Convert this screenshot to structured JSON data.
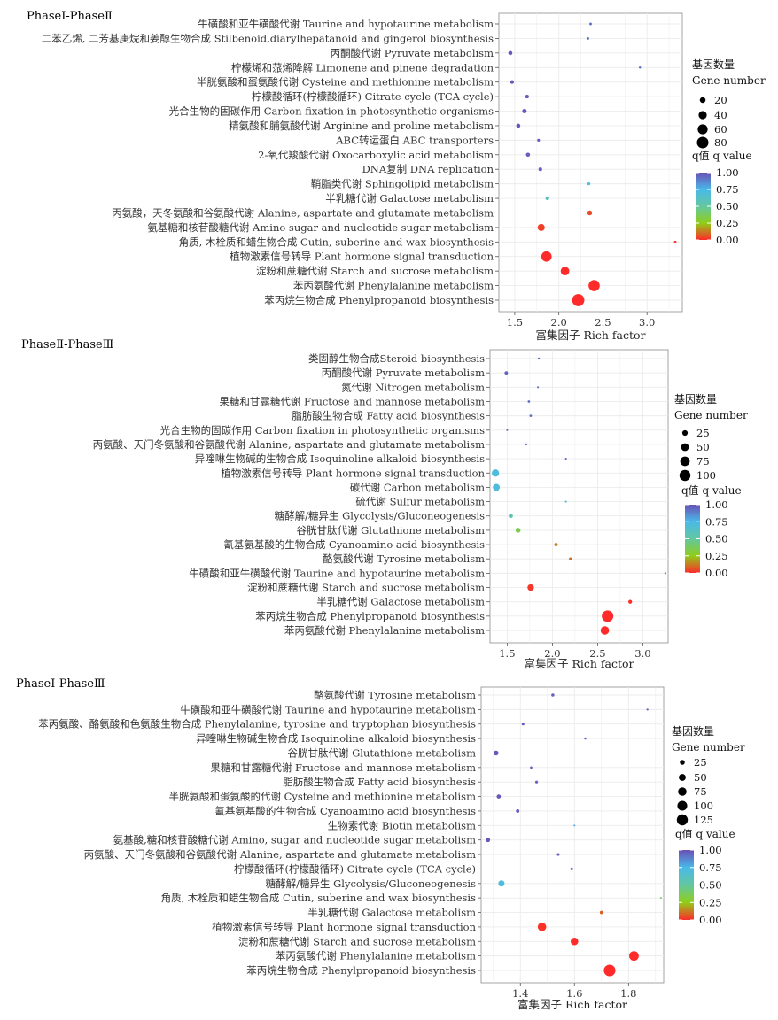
{
  "chart_data": [
    {
      "type": "scatter",
      "title": "PhaseⅠ-PhaseⅡ",
      "xlabel": "富集因子 Rich factor",
      "xlim": [
        1.32,
        3.4
      ],
      "xticks": [
        1.5,
        2.0,
        2.5,
        3.0
      ],
      "xtick_labels": [
        "1.5",
        "2.0",
        "2.5",
        "3.0"
      ],
      "grid": true,
      "size_legend": {
        "title1": "基因数量",
        "title2": "Gene number",
        "values": [
          20,
          40,
          60,
          80
        ]
      },
      "color_legend": {
        "title": "q值 q value",
        "ticks": [
          1.0,
          0.75,
          0.5,
          0.25,
          0.0
        ],
        "tick_labels": [
          "1.00",
          "0.75",
          "0.50",
          "0.25",
          "0.00"
        ]
      },
      "points": [
        {
          "pathway": "牛磺酸和亚牛磺酸代谢 Taurine and hypotaurine metabolism",
          "rich_factor": 2.36,
          "gene_number": 4,
          "q_value": 0.92
        },
        {
          "pathway": "二苯乙烯, 二芳基庚烷和姜醇生物合成 Stilbenoid,diarylhepatanoid and gingerol biosynthesis",
          "rich_factor": 2.33,
          "gene_number": 4,
          "q_value": 0.92
        },
        {
          "pathway": "丙酮酸代谢 Pyruvate metabolism",
          "rich_factor": 1.45,
          "gene_number": 10,
          "q_value": 0.98
        },
        {
          "pathway": "柠檬烯和蒎烯降解 Limonene and pinene degradation",
          "rich_factor": 2.92,
          "gene_number": 3,
          "q_value": 0.92
        },
        {
          "pathway": "半胱氨酸和蛋氨酸代谢 Cysteine and methionine metabolism",
          "rich_factor": 1.47,
          "gene_number": 8,
          "q_value": 0.98
        },
        {
          "pathway": "柠檬酸循环(柠檬酸循环) Citrate cycle (TCA cycle)",
          "rich_factor": 1.64,
          "gene_number": 8,
          "q_value": 0.97
        },
        {
          "pathway": "光合生物的固碳作用 Carbon fixation in photosynthetic organisms",
          "rich_factor": 1.61,
          "gene_number": 12,
          "q_value": 0.98
        },
        {
          "pathway": "精氨酸和脯氨酸代谢 Arginine and proline metabolism",
          "rich_factor": 1.54,
          "gene_number": 10,
          "q_value": 0.98
        },
        {
          "pathway": "ABC转运蛋白 ABC transporters",
          "rich_factor": 1.77,
          "gene_number": 5,
          "q_value": 0.96
        },
        {
          "pathway": "2-氧代羧酸代谢 Oxocarboxylic acid metabolism",
          "rich_factor": 1.65,
          "gene_number": 10,
          "q_value": 0.97
        },
        {
          "pathway": "DNA复制 DNA replication",
          "rich_factor": 1.79,
          "gene_number": 8,
          "q_value": 0.96
        },
        {
          "pathway": "鞘脂类代谢 Sphingolipid metabolism",
          "rich_factor": 2.34,
          "gene_number": 5,
          "q_value": 0.72
        },
        {
          "pathway": "半乳糖代谢 Galactose metabolism",
          "rich_factor": 1.87,
          "gene_number": 8,
          "q_value": 0.62
        },
        {
          "pathway": "丙氨酸，天冬氨酸和谷氨酸代谢 Alanine, aspartate and glutamate metabolism",
          "rich_factor": 2.35,
          "gene_number": 14,
          "q_value": 0.05
        },
        {
          "pathway": "氨基糖和核苷酸糖代谢 Amino sugar and nucleotide sugar metabolism",
          "rich_factor": 1.8,
          "gene_number": 30,
          "q_value": 0.03
        },
        {
          "pathway": "角质, 木栓质和蜡生物合成 Cutin, suberine and wax biosynthesis",
          "rich_factor": 3.32,
          "gene_number": 4,
          "q_value": 0.02
        },
        {
          "pathway": "植物激素信号转导 Plant hormone signal transduction",
          "rich_factor": 1.86,
          "gene_number": 65,
          "q_value": 0.0
        },
        {
          "pathway": "淀粉和蔗糖代谢 Starch and sucrose metabolism",
          "rich_factor": 2.07,
          "gene_number": 45,
          "q_value": 0.0
        },
        {
          "pathway": "苯丙氨酸代谢 Phenylalanine metabolism",
          "rich_factor": 2.4,
          "gene_number": 75,
          "q_value": 0.0
        },
        {
          "pathway": "苯丙烷生物合成 Phenylpropanoid biosynthesis",
          "rich_factor": 2.22,
          "gene_number": 90,
          "q_value": 0.0
        }
      ]
    },
    {
      "type": "scatter",
      "title": "PhaseⅡ-PhaseⅢ",
      "xlabel": "富集因子 Rich factor",
      "xlim": [
        1.31,
        3.28
      ],
      "xticks": [
        1.5,
        2.0,
        2.5,
        3.0
      ],
      "xtick_labels": [
        "1.5",
        "2.0",
        "2.5",
        "3.0"
      ],
      "grid": true,
      "size_legend": {
        "title1": "基因数量",
        "title2": "Gene number",
        "values": [
          25,
          50,
          75,
          100
        ]
      },
      "color_legend": {
        "title": "q值 q value",
        "ticks": [
          1.0,
          0.75,
          0.5,
          0.25,
          0.0
        ],
        "tick_labels": [
          "1.00",
          "0.75",
          "0.50",
          "0.25",
          "0.00"
        ]
      },
      "points": [
        {
          "pathway": "类固醇生物合成Steroid biosynthesis",
          "rich_factor": 1.85,
          "gene_number": 4,
          "q_value": 0.92
        },
        {
          "pathway": "丙酮酸代谢 Pyruvate metabolism",
          "rich_factor": 1.49,
          "gene_number": 10,
          "q_value": 0.95
        },
        {
          "pathway": "氮代谢 Nitrogen metabolism",
          "rich_factor": 1.84,
          "gene_number": 3,
          "q_value": 0.93
        },
        {
          "pathway": "果糖和甘露糖代谢 Fructose and mannose metabolism",
          "rich_factor": 1.74,
          "gene_number": 5,
          "q_value": 0.93
        },
        {
          "pathway": "脂肪酸生物合成 Fatty acid biosynthesis",
          "rich_factor": 1.76,
          "gene_number": 5,
          "q_value": 0.93
        },
        {
          "pathway": "光合生物的固碳作用 Carbon fixation in photosynthetic organisms",
          "rich_factor": 1.5,
          "gene_number": 3,
          "q_value": 0.93
        },
        {
          "pathway": "丙氨酸、天门冬氨酸和谷氨酸代谢 Alanine, aspartate and glutamate metabolism",
          "rich_factor": 1.71,
          "gene_number": 4,
          "q_value": 0.92
        },
        {
          "pathway": "异喹啉生物碱的生物合成 Isoquinoline alkaloid biosynthesis",
          "rich_factor": 2.15,
          "gene_number": 3,
          "q_value": 0.93
        },
        {
          "pathway": "植物激素信号转导 Plant hormone signal transduction",
          "rich_factor": 1.37,
          "gene_number": 45,
          "q_value": 0.7
        },
        {
          "pathway": "碳代谢 Carbon metabolism",
          "rich_factor": 1.38,
          "gene_number": 40,
          "q_value": 0.7
        },
        {
          "pathway": "硫代谢 Sulfur metabolism",
          "rich_factor": 2.15,
          "gene_number": 3,
          "q_value": 0.72
        },
        {
          "pathway": "糖酵解/糖异生 Glycolysis/Gluconeogenesis",
          "rich_factor": 1.54,
          "gene_number": 15,
          "q_value": 0.55
        },
        {
          "pathway": "谷胱甘肽代谢 Glutathione metabolism",
          "rich_factor": 1.62,
          "gene_number": 20,
          "q_value": 0.35
        },
        {
          "pathway": "氰基氨基酸的生物合成 Cyanoamino acid biosynthesis",
          "rich_factor": 2.04,
          "gene_number": 10,
          "q_value": 0.12
        },
        {
          "pathway": "酪氨酸代谢 Tyrosine metabolism",
          "rich_factor": 2.2,
          "gene_number": 8,
          "q_value": 0.1
        },
        {
          "pathway": "牛磺酸和亚牛磺酸代谢 Taurine and hypotaurine metabolism",
          "rich_factor": 3.25,
          "gene_number": 3,
          "q_value": 0.05
        },
        {
          "pathway": "淀粉和蔗糖代谢 Starch and sucrose metabolism",
          "rich_factor": 1.76,
          "gene_number": 35,
          "q_value": 0.02
        },
        {
          "pathway": "半乳糖代谢 Galactose metabolism",
          "rich_factor": 2.86,
          "gene_number": 12,
          "q_value": 0.01
        },
        {
          "pathway": "苯丙烷生物合成 Phenylpropanoid biosynthesis",
          "rich_factor": 2.61,
          "gene_number": 110,
          "q_value": 0.0
        },
        {
          "pathway": "苯丙氨酸代谢 Phenylalanine metabolism",
          "rich_factor": 2.58,
          "gene_number": 60,
          "q_value": 0.0
        }
      ]
    },
    {
      "type": "scatter",
      "title": "PhaseⅠ-PhaseⅢ",
      "xlabel": "富集因子 Rich factor",
      "xlim": [
        1.255,
        1.93
      ],
      "xticks": [
        1.4,
        1.6,
        1.8
      ],
      "xtick_labels": [
        "1.4",
        "1.6",
        "1.8"
      ],
      "grid": true,
      "size_legend": {
        "title1": "基因数量",
        "title2": "Gene number",
        "values": [
          25,
          50,
          75,
          100,
          125
        ]
      },
      "color_legend": {
        "title": "q值 q value",
        "ticks": [
          1.0,
          0.75,
          0.5,
          0.25,
          0.0
        ],
        "tick_labels": [
          "1.00",
          "0.75",
          "0.50",
          "0.25",
          "0.00"
        ]
      },
      "points": [
        {
          "pathway": "酪氨酸代谢 Tyrosine metabolism",
          "rich_factor": 1.52,
          "gene_number": 10,
          "q_value": 0.96
        },
        {
          "pathway": "牛磺酸和亚牛磺酸代谢 Taurine and hypotaurine metabolism",
          "rich_factor": 1.87,
          "gene_number": 4,
          "q_value": 0.96
        },
        {
          "pathway": "苯丙氨酸、酪氨酸和色氨酸生物合成 Phenylalanine, tyrosine and tryptophan biosynthesis",
          "rich_factor": 1.41,
          "gene_number": 8,
          "q_value": 0.96
        },
        {
          "pathway": "异喹啉生物碱生物合成 Isoquinoline alkaloid biosynthesis",
          "rich_factor": 1.64,
          "gene_number": 5,
          "q_value": 0.96
        },
        {
          "pathway": "谷胱甘肽代谢 Glutathione metabolism",
          "rich_factor": 1.31,
          "gene_number": 25,
          "q_value": 0.98
        },
        {
          "pathway": "果糖和甘露糖代谢 Fructose and mannose metabolism",
          "rich_factor": 1.44,
          "gene_number": 6,
          "q_value": 0.96
        },
        {
          "pathway": "脂肪酸生物合成 Fatty acid biosynthesis",
          "rich_factor": 1.46,
          "gene_number": 8,
          "q_value": 0.96
        },
        {
          "pathway": "半胱氨酸和蛋氨酸的代谢 Cysteine and methionine metabolism",
          "rich_factor": 1.32,
          "gene_number": 18,
          "q_value": 0.98
        },
        {
          "pathway": "氰基氨基酸的生物合成 Cyanoamino acid biosynthesis",
          "rich_factor": 1.39,
          "gene_number": 12,
          "q_value": 0.97
        },
        {
          "pathway": "生物素代谢 Biotin metabolism",
          "rich_factor": 1.6,
          "gene_number": 3,
          "q_value": 0.8
        },
        {
          "pathway": "氨基酸,糖和核苷酸糖代谢 Amino, sugar and nucleotide sugar metabolism",
          "rich_factor": 1.28,
          "gene_number": 20,
          "q_value": 0.98
        },
        {
          "pathway": "丙氨酸、天门冬氨酸和谷氨酸代谢 Alanine, aspartate and glutamate metabolism",
          "rich_factor": 1.54,
          "gene_number": 8,
          "q_value": 0.96
        },
        {
          "pathway": "柠檬酸循环(柠檬酸循环) Citrate cycle (TCA cycle)",
          "rich_factor": 1.59,
          "gene_number": 8,
          "q_value": 0.94
        },
        {
          "pathway": "糖酵解/糖异生 Glycolysis/Gluconeogenesis",
          "rich_factor": 1.33,
          "gene_number": 40,
          "q_value": 0.7
        },
        {
          "pathway": "角质, 木栓质和蜡生物合成 Cutin, suberine and wax biosynthesis",
          "rich_factor": 1.92,
          "gene_number": 2,
          "q_value": 0.4
        },
        {
          "pathway": "半乳糖代谢 Galactose metabolism",
          "rich_factor": 1.7,
          "gene_number": 12,
          "q_value": 0.08
        },
        {
          "pathway": "植物激素信号转导 Plant hormone signal transduction",
          "rich_factor": 1.48,
          "gene_number": 75,
          "q_value": 0.01
        },
        {
          "pathway": "淀粉和蔗糖代谢 Starch and sucrose metabolism",
          "rich_factor": 1.6,
          "gene_number": 60,
          "q_value": 0.0
        },
        {
          "pathway": "苯丙氨酸代谢 Phenylalanine metabolism",
          "rich_factor": 1.82,
          "gene_number": 95,
          "q_value": 0.0
        },
        {
          "pathway": "苯丙烷生物合成 Phenylpropanoid biosynthesis",
          "rich_factor": 1.73,
          "gene_number": 140,
          "q_value": 0.0
        }
      ]
    }
  ]
}
